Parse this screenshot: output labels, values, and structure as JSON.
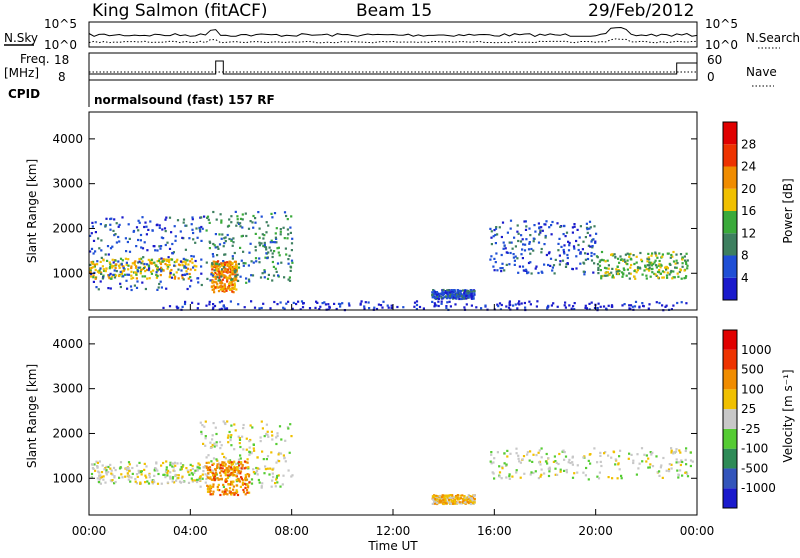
{
  "header": {
    "station": "King Salmon (fitACF)",
    "beam": "Beam 15",
    "date": "29/Feb/2012"
  },
  "panels": {
    "nsky_label": "N.Sky",
    "nsearch_label": "N.Search",
    "freq_label_top": "Freq.",
    "freq_label_unit": "[MHz]",
    "nave_label": "Nave",
    "cpid_label": "CPID",
    "cpid_value": "normalsound (fast) 157 RF",
    "noise_ticks": [
      "10^5",
      "10^0"
    ],
    "freq_ticks": [
      "18",
      "8"
    ],
    "nave_ticks": [
      "60",
      "0"
    ]
  },
  "chart_data": [
    {
      "type": "heatmap",
      "name": "power",
      "ylabel": "Slant Range [km]",
      "ylim": [
        180,
        4600
      ],
      "yticks": [
        "1000",
        "2000",
        "3000",
        "4000"
      ],
      "colorbar_label": "Power [dB]",
      "colorbar_ticks": [
        "4",
        "8",
        "12",
        "16",
        "20",
        "24",
        "28"
      ],
      "colors": [
        "#1a1acc",
        "#1f4fd6",
        "#3d7f5f",
        "#3aaa3a",
        "#f0c000",
        "#f08c00",
        "#ee3300",
        "#e00000"
      ],
      "regions": [
        {
          "t": [
            0.0,
            4.2
          ],
          "r": [
            900,
            1350
          ],
          "level": 4
        },
        {
          "t": [
            0.0,
            4.5
          ],
          "r": [
            650,
            2300
          ],
          "level": 1
        },
        {
          "t": [
            4.8,
            5.8
          ],
          "r": [
            600,
            1300
          ],
          "level": 5
        },
        {
          "t": [
            4.6,
            8.0
          ],
          "r": [
            800,
            2400
          ],
          "level": 2
        },
        {
          "t": [
            15.8,
            20.0
          ],
          "r": [
            1000,
            2200
          ],
          "level": 1
        },
        {
          "t": [
            20.0,
            23.6
          ],
          "r": [
            900,
            1500
          ],
          "level": 3
        },
        {
          "t": [
            13.5,
            15.2
          ],
          "r": [
            450,
            650
          ],
          "level": 1
        },
        {
          "t": [
            2.5,
            23.8
          ],
          "r": [
            200,
            400
          ],
          "level": 0
        }
      ]
    },
    {
      "type": "heatmap",
      "name": "velocity",
      "ylabel": "Slant Range [km]",
      "ylim": [
        180,
        4600
      ],
      "yticks": [
        "1000",
        "2000",
        "3000",
        "4000"
      ],
      "colorbar_label": "Velocity [m s⁻¹]",
      "colorbar_ticks": [
        "1000",
        "500",
        "100",
        "25",
        "-25",
        "-100",
        "-500",
        "-1000"
      ],
      "colors": [
        "#1a1acc",
        "#3355bb",
        "#2e8b57",
        "#55cc33",
        "#c8c8c8",
        "#f0c000",
        "#f08c00",
        "#ee3300",
        "#e00000"
      ],
      "regions": [
        {
          "t": [
            0.0,
            4.5
          ],
          "r": [
            900,
            1400
          ],
          "level": 4
        },
        {
          "t": [
            4.3,
            8.0
          ],
          "r": [
            800,
            2300
          ],
          "level": 4
        },
        {
          "t": [
            4.6,
            6.3
          ],
          "r": [
            650,
            1400
          ],
          "level": 6
        },
        {
          "t": [
            15.8,
            23.8
          ],
          "r": [
            1000,
            1700
          ],
          "level": 4
        },
        {
          "t": [
            13.5,
            15.2
          ],
          "r": [
            450,
            650
          ],
          "level": 5
        }
      ]
    }
  ],
  "x_axis": {
    "label": "Time UT",
    "ticks": [
      "00:00",
      "04:00",
      "08:00",
      "12:00",
      "16:00",
      "20:00",
      "00:00"
    ],
    "range_hours": [
      0,
      24
    ]
  }
}
